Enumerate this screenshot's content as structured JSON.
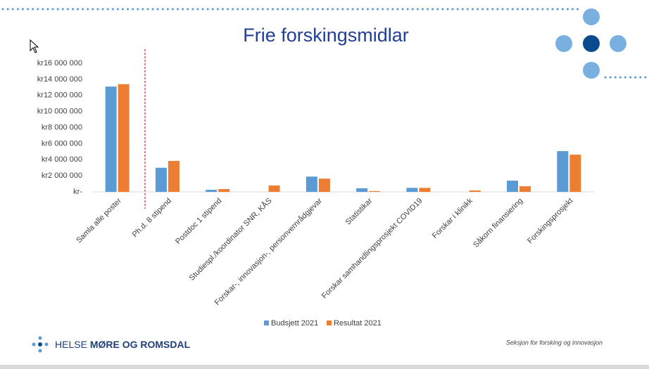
{
  "chart_data": {
    "type": "bar",
    "title": "Frie forskingsmidlar",
    "categories": [
      "Samla alle poster",
      "Ph.d. 8 stipend",
      "Postdoc 1 stipend",
      "Studiespl./koordinator SNR, KÅS",
      "Forskar-, innovasjon-, personvernrådgjevar",
      "Statistikar",
      "Forskar samhandlingsprosjekt COVID19",
      "Forskar i klinikk",
      "Såkorn finansiering",
      "Forskingsprosjekt"
    ],
    "series": [
      {
        "name": "Budsjett 2021",
        "color": "#5b9bd5",
        "values": [
          13100000,
          3000000,
          260000,
          0,
          1900000,
          450000,
          500000,
          0,
          1400000,
          5070000
        ]
      },
      {
        "name": "Resultat 2021",
        "color": "#ed7d31",
        "values": [
          13400000,
          3850000,
          350000,
          800000,
          1650000,
          100000,
          500000,
          180000,
          700000,
          4630000
        ]
      }
    ],
    "ylim": [
      0,
      16000000
    ],
    "yticks": [
      {
        "value": 0,
        "label": "kr-"
      },
      {
        "value": 2000000,
        "label": "kr2 000 000"
      },
      {
        "value": 4000000,
        "label": "kr4 000 000"
      },
      {
        "value": 6000000,
        "label": "kr6 000 000"
      },
      {
        "value": 8000000,
        "label": "kr8 000 000"
      },
      {
        "value": 10000000,
        "label": "kr10 000 000"
      },
      {
        "value": 12000000,
        "label": "kr12 000 000"
      },
      {
        "value": 14000000,
        "label": "kr14 000 000"
      },
      {
        "value": 16000000,
        "label": "kr16 000 000"
      }
    ],
    "legend": "bottom"
  },
  "footer": {
    "logo_prefix": "HELSE",
    "logo_name": "MØRE OG ROMSDAL",
    "section": "Seksjon for forsking og innovasjon"
  }
}
